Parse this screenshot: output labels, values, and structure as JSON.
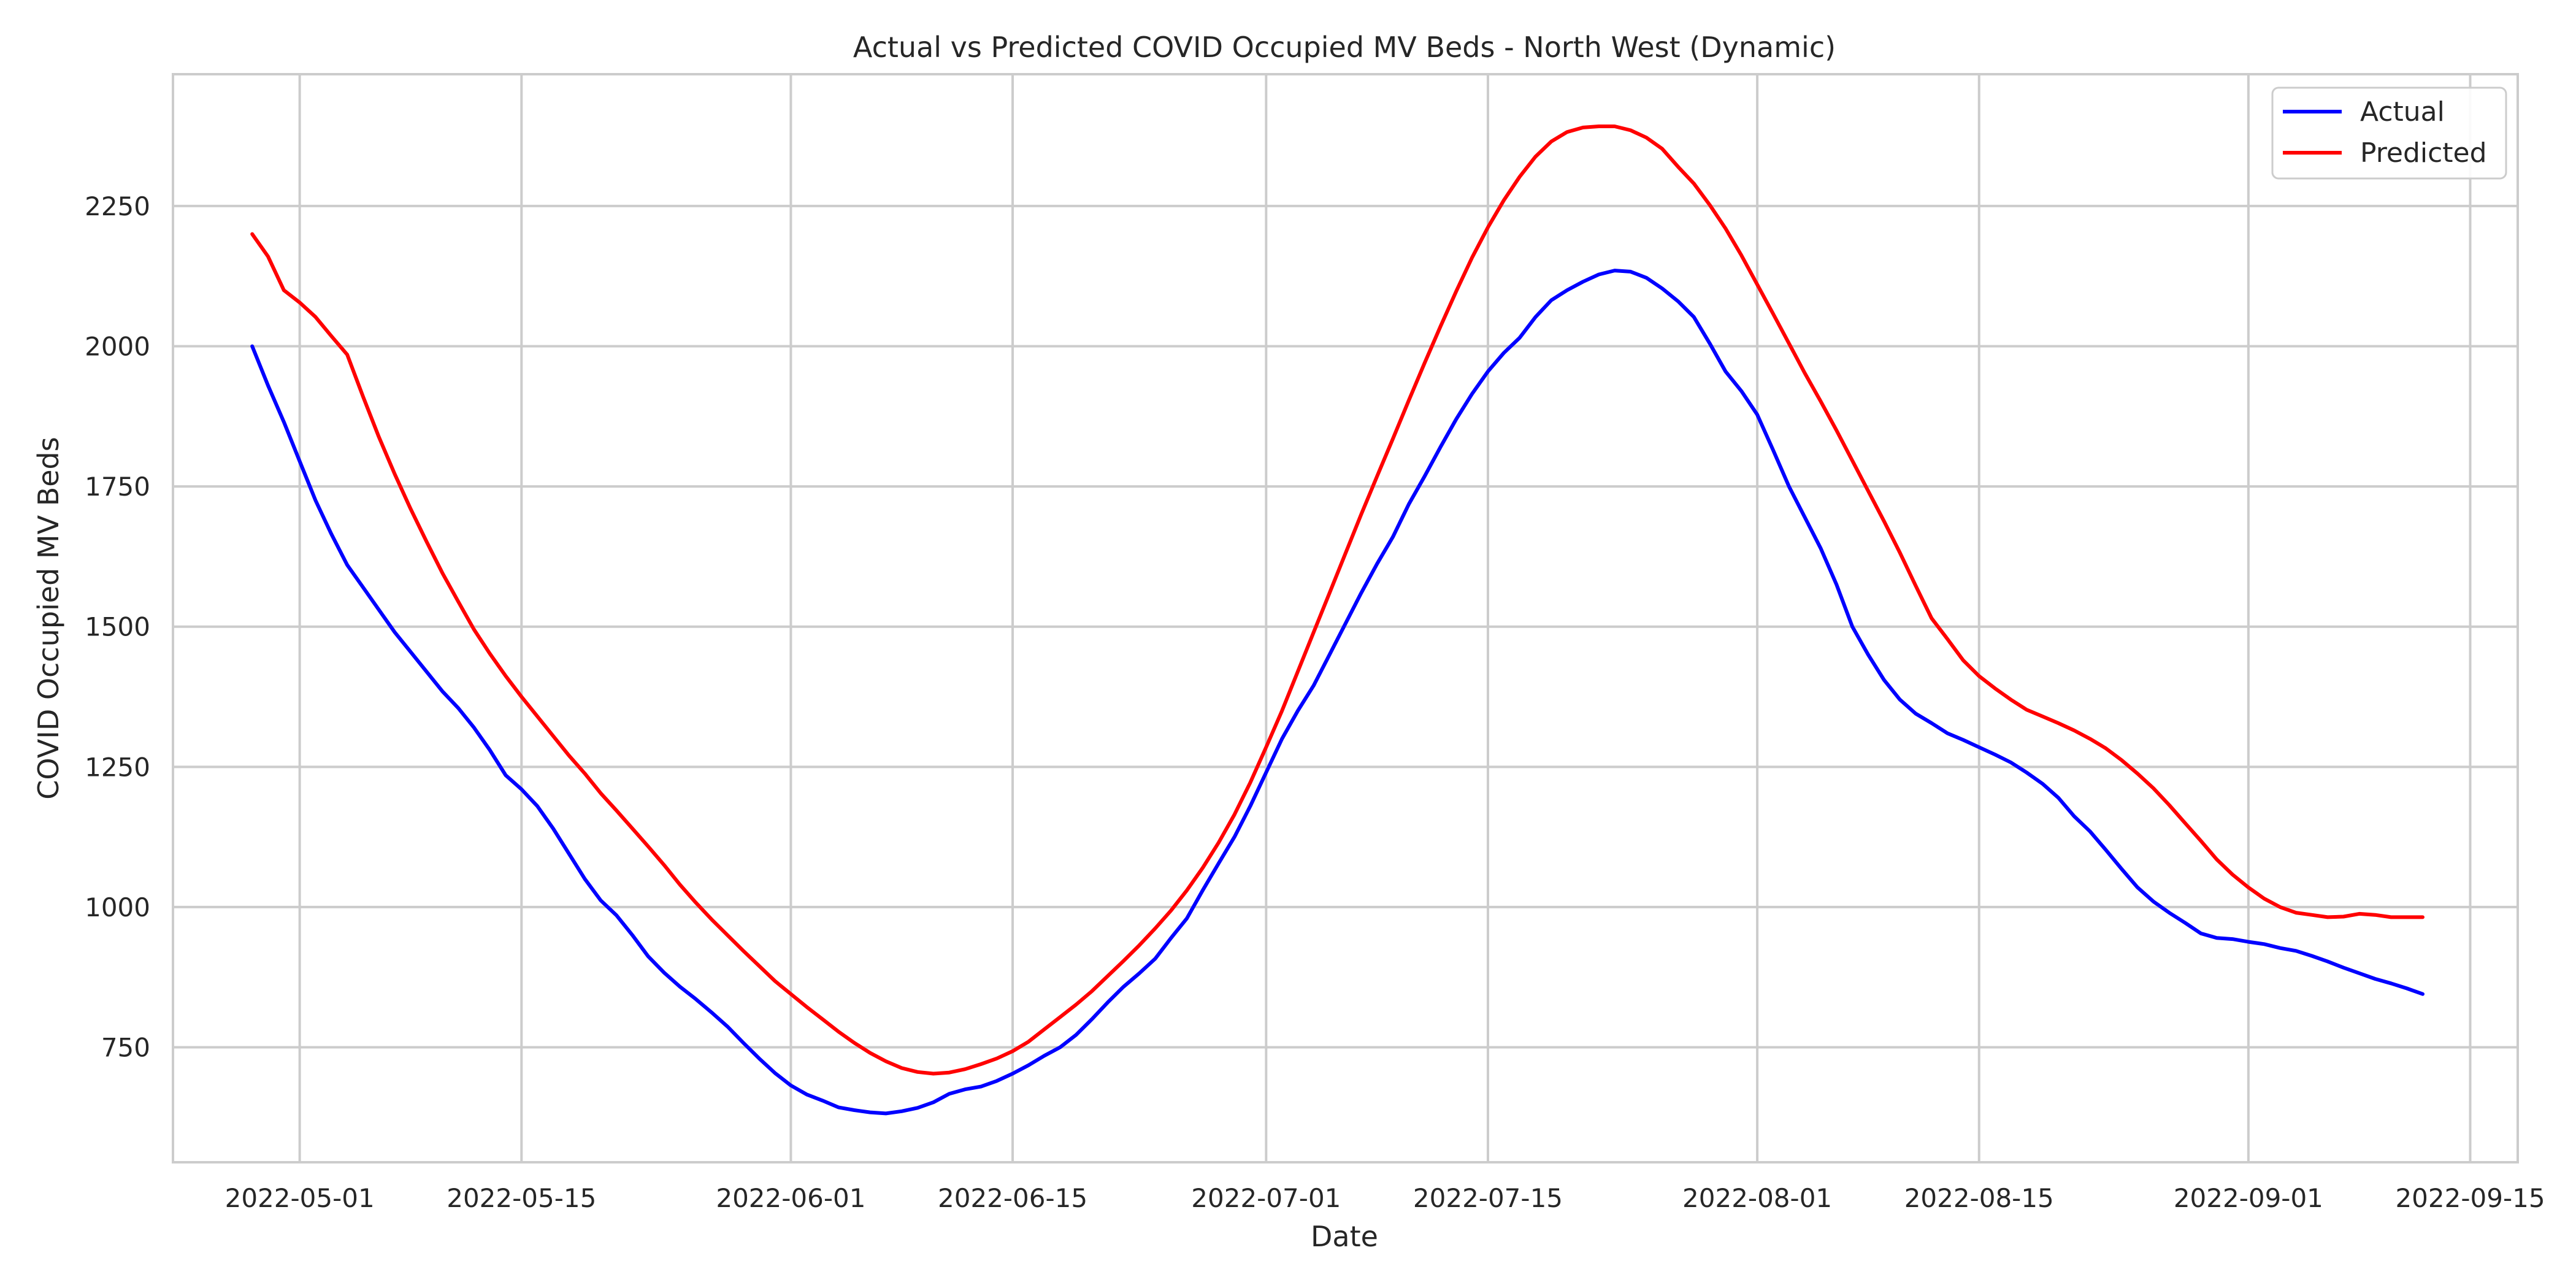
{
  "chart_data": {
    "type": "line",
    "title": "Actual vs Predicted COVID Occupied MV Beds - North West (Dynamic)",
    "xlabel": "Date",
    "ylabel": "COVID Occupied MV Beds",
    "xlim": [
      "2022-04-23",
      "2022-09-18"
    ],
    "ylim": [
      545,
      2485
    ],
    "xticks": [
      "2022-05-01",
      "2022-05-15",
      "2022-06-01",
      "2022-06-15",
      "2022-07-01",
      "2022-07-15",
      "2022-08-01",
      "2022-08-15",
      "2022-09-01",
      "2022-09-15"
    ],
    "yticks": [
      750,
      1000,
      1250,
      1500,
      1750,
      2000,
      2250
    ],
    "grid": true,
    "legend": "top-right",
    "series": [
      {
        "name": "Actual",
        "color": "#0000ff",
        "points": [
          [
            "2022-04-28",
            2000
          ],
          [
            "2022-04-29",
            1930
          ],
          [
            "2022-04-30",
            1865
          ],
          [
            "2022-05-01",
            1795
          ],
          [
            "2022-05-02",
            1725
          ],
          [
            "2022-05-03",
            1665
          ],
          [
            "2022-05-04",
            1610
          ],
          [
            "2022-05-05",
            1570
          ],
          [
            "2022-05-06",
            1530
          ],
          [
            "2022-05-07",
            1490
          ],
          [
            "2022-05-08",
            1455
          ],
          [
            "2022-05-09",
            1420
          ],
          [
            "2022-05-10",
            1385
          ],
          [
            "2022-05-11",
            1355
          ],
          [
            "2022-05-12",
            1320
          ],
          [
            "2022-05-13",
            1280
          ],
          [
            "2022-05-14",
            1235
          ],
          [
            "2022-05-15",
            1210
          ],
          [
            "2022-05-16",
            1180
          ],
          [
            "2022-05-17",
            1140
          ],
          [
            "2022-05-18",
            1095
          ],
          [
            "2022-05-19",
            1050
          ],
          [
            "2022-05-20",
            1012
          ],
          [
            "2022-05-21",
            985
          ],
          [
            "2022-05-22",
            950
          ],
          [
            "2022-05-23",
            912
          ],
          [
            "2022-05-24",
            883
          ],
          [
            "2022-05-25",
            858
          ],
          [
            "2022-05-26",
            836
          ],
          [
            "2022-05-27",
            812
          ],
          [
            "2022-05-28",
            787
          ],
          [
            "2022-05-29",
            758
          ],
          [
            "2022-05-30",
            730
          ],
          [
            "2022-05-31",
            704
          ],
          [
            "2022-06-01",
            682
          ],
          [
            "2022-06-02",
            666
          ],
          [
            "2022-06-03",
            655
          ],
          [
            "2022-06-04",
            643
          ],
          [
            "2022-06-05",
            638
          ],
          [
            "2022-06-06",
            634
          ],
          [
            "2022-06-07",
            632
          ],
          [
            "2022-06-08",
            636
          ],
          [
            "2022-06-09",
            642
          ],
          [
            "2022-06-10",
            652
          ],
          [
            "2022-06-11",
            667
          ],
          [
            "2022-06-12",
            675
          ],
          [
            "2022-06-13",
            680
          ],
          [
            "2022-06-14",
            690
          ],
          [
            "2022-06-15",
            703
          ],
          [
            "2022-06-16",
            718
          ],
          [
            "2022-06-17",
            735
          ],
          [
            "2022-06-18",
            750
          ],
          [
            "2022-06-19",
            772
          ],
          [
            "2022-06-20",
            800
          ],
          [
            "2022-06-21",
            830
          ],
          [
            "2022-06-22",
            858
          ],
          [
            "2022-06-23",
            882
          ],
          [
            "2022-06-24",
            908
          ],
          [
            "2022-06-25",
            945
          ],
          [
            "2022-06-26",
            980
          ],
          [
            "2022-06-27",
            1030
          ],
          [
            "2022-06-28",
            1078
          ],
          [
            "2022-06-29",
            1125
          ],
          [
            "2022-06-30",
            1180
          ],
          [
            "2022-07-01",
            1240
          ],
          [
            "2022-07-02",
            1300
          ],
          [
            "2022-07-03",
            1350
          ],
          [
            "2022-07-04",
            1395
          ],
          [
            "2022-07-05",
            1450
          ],
          [
            "2022-07-06",
            1505
          ],
          [
            "2022-07-07",
            1560
          ],
          [
            "2022-07-08",
            1612
          ],
          [
            "2022-07-09",
            1660
          ],
          [
            "2022-07-10",
            1718
          ],
          [
            "2022-07-11",
            1768
          ],
          [
            "2022-07-12",
            1820
          ],
          [
            "2022-07-13",
            1870
          ],
          [
            "2022-07-14",
            1915
          ],
          [
            "2022-07-15",
            1955
          ],
          [
            "2022-07-16",
            1988
          ],
          [
            "2022-07-17",
            2015
          ],
          [
            "2022-07-18",
            2052
          ],
          [
            "2022-07-19",
            2082
          ],
          [
            "2022-07-20",
            2100
          ],
          [
            "2022-07-21",
            2115
          ],
          [
            "2022-07-22",
            2128
          ],
          [
            "2022-07-23",
            2135
          ],
          [
            "2022-07-24",
            2133
          ],
          [
            "2022-07-25",
            2122
          ],
          [
            "2022-07-26",
            2103
          ],
          [
            "2022-07-27",
            2080
          ],
          [
            "2022-07-28",
            2052
          ],
          [
            "2022-07-29",
            2005
          ],
          [
            "2022-07-30",
            1955
          ],
          [
            "2022-07-31",
            1920
          ],
          [
            "2022-08-01",
            1878
          ],
          [
            "2022-08-02",
            1815
          ],
          [
            "2022-08-03",
            1750
          ],
          [
            "2022-08-04",
            1695
          ],
          [
            "2022-08-05",
            1640
          ],
          [
            "2022-08-06",
            1575
          ],
          [
            "2022-08-07",
            1500
          ],
          [
            "2022-08-08",
            1450
          ],
          [
            "2022-08-09",
            1405
          ],
          [
            "2022-08-10",
            1370
          ],
          [
            "2022-08-11",
            1345
          ],
          [
            "2022-08-12",
            1328
          ],
          [
            "2022-08-13",
            1310
          ],
          [
            "2022-08-14",
            1298
          ],
          [
            "2022-08-15",
            1285
          ],
          [
            "2022-08-16",
            1272
          ],
          [
            "2022-08-17",
            1258
          ],
          [
            "2022-08-18",
            1240
          ],
          [
            "2022-08-19",
            1220
          ],
          [
            "2022-08-20",
            1195
          ],
          [
            "2022-08-21",
            1162
          ],
          [
            "2022-08-22",
            1135
          ],
          [
            "2022-08-23",
            1102
          ],
          [
            "2022-08-24",
            1068
          ],
          [
            "2022-08-25",
            1035
          ],
          [
            "2022-08-26",
            1010
          ],
          [
            "2022-08-27",
            990
          ],
          [
            "2022-08-28",
            972
          ],
          [
            "2022-08-29",
            953
          ],
          [
            "2022-08-30",
            945
          ],
          [
            "2022-08-31",
            943
          ],
          [
            "2022-09-01",
            938
          ],
          [
            "2022-09-02",
            934
          ],
          [
            "2022-09-03",
            927
          ],
          [
            "2022-09-04",
            922
          ],
          [
            "2022-09-05",
            913
          ],
          [
            "2022-09-06",
            903
          ],
          [
            "2022-09-07",
            892
          ],
          [
            "2022-09-08",
            882
          ],
          [
            "2022-09-09",
            872
          ],
          [
            "2022-09-10",
            864
          ],
          [
            "2022-09-11",
            855
          ],
          [
            "2022-09-12",
            845
          ]
        ]
      },
      {
        "name": "Predicted",
        "color": "#ff0000",
        "points": [
          [
            "2022-04-28",
            2200
          ],
          [
            "2022-04-29",
            2160
          ],
          [
            "2022-04-30",
            2100
          ],
          [
            "2022-05-01",
            2078
          ],
          [
            "2022-05-02",
            2052
          ],
          [
            "2022-05-03",
            2018
          ],
          [
            "2022-05-04",
            1985
          ],
          [
            "2022-05-05",
            1910
          ],
          [
            "2022-05-06",
            1838
          ],
          [
            "2022-05-07",
            1772
          ],
          [
            "2022-05-08",
            1710
          ],
          [
            "2022-05-09",
            1652
          ],
          [
            "2022-05-10",
            1596
          ],
          [
            "2022-05-11",
            1545
          ],
          [
            "2022-05-12",
            1495
          ],
          [
            "2022-05-13",
            1452
          ],
          [
            "2022-05-14",
            1412
          ],
          [
            "2022-05-15",
            1375
          ],
          [
            "2022-05-16",
            1340
          ],
          [
            "2022-05-17",
            1305
          ],
          [
            "2022-05-18",
            1270
          ],
          [
            "2022-05-19",
            1238
          ],
          [
            "2022-05-20",
            1203
          ],
          [
            "2022-05-21",
            1172
          ],
          [
            "2022-05-22",
            1140
          ],
          [
            "2022-05-23",
            1108
          ],
          [
            "2022-05-24",
            1075
          ],
          [
            "2022-05-25",
            1040
          ],
          [
            "2022-05-26",
            1008
          ],
          [
            "2022-05-27",
            978
          ],
          [
            "2022-05-28",
            950
          ],
          [
            "2022-05-29",
            922
          ],
          [
            "2022-05-30",
            895
          ],
          [
            "2022-05-31",
            868
          ],
          [
            "2022-06-01",
            845
          ],
          [
            "2022-06-02",
            822
          ],
          [
            "2022-06-03",
            800
          ],
          [
            "2022-06-04",
            778
          ],
          [
            "2022-06-05",
            758
          ],
          [
            "2022-06-06",
            740
          ],
          [
            "2022-06-07",
            725
          ],
          [
            "2022-06-08",
            713
          ],
          [
            "2022-06-09",
            706
          ],
          [
            "2022-06-10",
            703
          ],
          [
            "2022-06-11",
            705
          ],
          [
            "2022-06-12",
            711
          ],
          [
            "2022-06-13",
            720
          ],
          [
            "2022-06-14",
            730
          ],
          [
            "2022-06-15",
            743
          ],
          [
            "2022-06-16",
            760
          ],
          [
            "2022-06-17",
            782
          ],
          [
            "2022-06-18",
            804
          ],
          [
            "2022-06-19",
            826
          ],
          [
            "2022-06-20",
            850
          ],
          [
            "2022-06-21",
            877
          ],
          [
            "2022-06-22",
            904
          ],
          [
            "2022-06-23",
            932
          ],
          [
            "2022-06-24",
            962
          ],
          [
            "2022-06-25",
            994
          ],
          [
            "2022-06-26",
            1030
          ],
          [
            "2022-06-27",
            1070
          ],
          [
            "2022-06-28",
            1115
          ],
          [
            "2022-06-29",
            1165
          ],
          [
            "2022-06-30",
            1222
          ],
          [
            "2022-07-01",
            1285
          ],
          [
            "2022-07-02",
            1350
          ],
          [
            "2022-07-03",
            1420
          ],
          [
            "2022-07-04",
            1490
          ],
          [
            "2022-07-05",
            1560
          ],
          [
            "2022-07-06",
            1630
          ],
          [
            "2022-07-07",
            1700
          ],
          [
            "2022-07-08",
            1768
          ],
          [
            "2022-07-09",
            1835
          ],
          [
            "2022-07-10",
            1903
          ],
          [
            "2022-07-11",
            1970
          ],
          [
            "2022-07-12",
            2035
          ],
          [
            "2022-07-13",
            2098
          ],
          [
            "2022-07-14",
            2158
          ],
          [
            "2022-07-15",
            2212
          ],
          [
            "2022-07-16",
            2260
          ],
          [
            "2022-07-17",
            2302
          ],
          [
            "2022-07-18",
            2338
          ],
          [
            "2022-07-19",
            2365
          ],
          [
            "2022-07-20",
            2382
          ],
          [
            "2022-07-21",
            2390
          ],
          [
            "2022-07-22",
            2392
          ],
          [
            "2022-07-23",
            2392
          ],
          [
            "2022-07-24",
            2385
          ],
          [
            "2022-07-25",
            2372
          ],
          [
            "2022-07-26",
            2352
          ],
          [
            "2022-07-27",
            2320
          ],
          [
            "2022-07-28",
            2290
          ],
          [
            "2022-07-29",
            2252
          ],
          [
            "2022-07-30",
            2210
          ],
          [
            "2022-07-31",
            2162
          ],
          [
            "2022-08-01",
            2110
          ],
          [
            "2022-08-02",
            2058
          ],
          [
            "2022-08-03",
            2005
          ],
          [
            "2022-08-04",
            1952
          ],
          [
            "2022-08-05",
            1902
          ],
          [
            "2022-08-06",
            1850
          ],
          [
            "2022-08-07",
            1796
          ],
          [
            "2022-08-08",
            1742
          ],
          [
            "2022-08-09",
            1688
          ],
          [
            "2022-08-10",
            1632
          ],
          [
            "2022-08-11",
            1573
          ],
          [
            "2022-08-12",
            1515
          ],
          [
            "2022-08-13",
            1478
          ],
          [
            "2022-08-14",
            1440
          ],
          [
            "2022-08-15",
            1412
          ],
          [
            "2022-08-16",
            1390
          ],
          [
            "2022-08-17",
            1370
          ],
          [
            "2022-08-18",
            1352
          ],
          [
            "2022-08-19",
            1340
          ],
          [
            "2022-08-20",
            1328
          ],
          [
            "2022-08-21",
            1315
          ],
          [
            "2022-08-22",
            1300
          ],
          [
            "2022-08-23",
            1283
          ],
          [
            "2022-08-24",
            1262
          ],
          [
            "2022-08-25",
            1238
          ],
          [
            "2022-08-26",
            1212
          ],
          [
            "2022-08-27",
            1182
          ],
          [
            "2022-08-28",
            1150
          ],
          [
            "2022-08-29",
            1118
          ],
          [
            "2022-08-30",
            1085
          ],
          [
            "2022-08-31",
            1058
          ],
          [
            "2022-09-01",
            1035
          ],
          [
            "2022-09-02",
            1015
          ],
          [
            "2022-09-03",
            1000
          ],
          [
            "2022-09-04",
            990
          ],
          [
            "2022-09-05",
            986
          ],
          [
            "2022-09-06",
            982
          ],
          [
            "2022-09-07",
            983
          ],
          [
            "2022-09-08",
            988
          ],
          [
            "2022-09-09",
            986
          ],
          [
            "2022-09-10",
            982
          ],
          [
            "2022-09-11",
            982
          ],
          [
            "2022-09-12",
            982
          ]
        ]
      }
    ]
  }
}
